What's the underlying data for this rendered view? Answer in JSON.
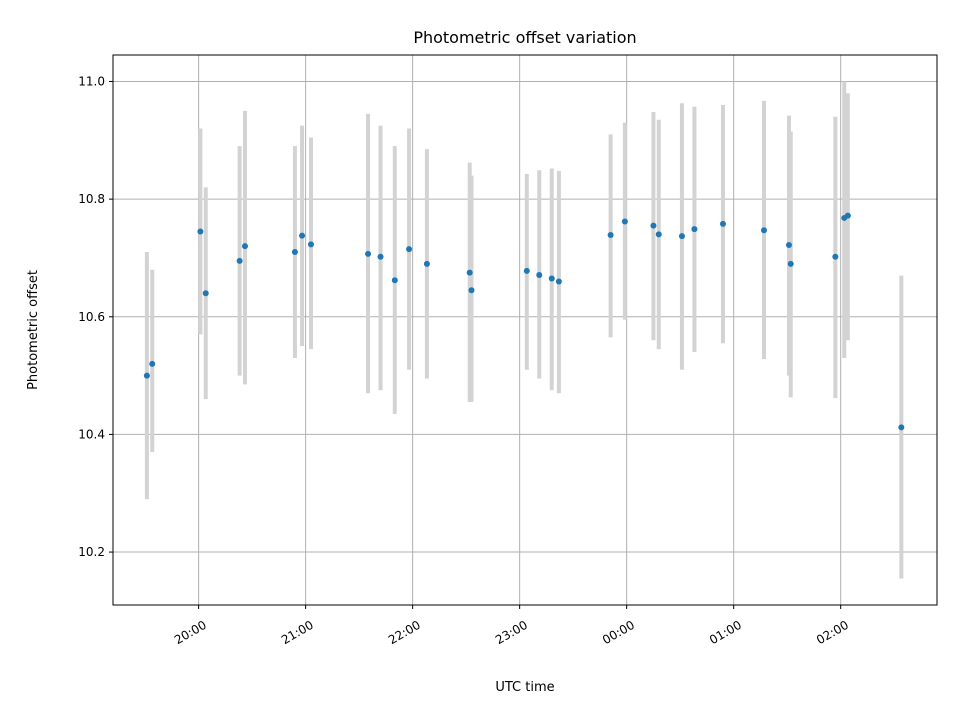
{
  "chart_data": {
    "type": "scatter",
    "title": "Photometric offset variation",
    "xlabel": "UTC time",
    "ylabel": "Photometric offset",
    "xlim_hours": [
      19.2,
      26.9
    ],
    "ylim": [
      10.11,
      11.045
    ],
    "x_ticks": [
      {
        "h": 20,
        "label": "20:00"
      },
      {
        "h": 21,
        "label": "21:00"
      },
      {
        "h": 22,
        "label": "22:00"
      },
      {
        "h": 23,
        "label": "23:00"
      },
      {
        "h": 24,
        "label": "00:00"
      },
      {
        "h": 25,
        "label": "01:00"
      },
      {
        "h": 26,
        "label": "02:00"
      }
    ],
    "y_ticks": [
      {
        "v": 10.2,
        "label": "10.2"
      },
      {
        "v": 10.4,
        "label": "10.4"
      },
      {
        "v": 10.6,
        "label": "10.6"
      },
      {
        "v": 10.8,
        "label": "10.8"
      },
      {
        "v": 11.0,
        "label": "11.0"
      }
    ],
    "grid": true,
    "colors": {
      "points": "#1f77b4",
      "errorbars": "#d3d3d3"
    },
    "points": [
      {
        "t": "19:31",
        "y": 10.5,
        "lo": 10.29,
        "hi": 10.71
      },
      {
        "t": "19:34",
        "y": 10.52,
        "lo": 10.37,
        "hi": 10.68
      },
      {
        "t": "20:01",
        "y": 10.745,
        "lo": 10.57,
        "hi": 10.92
      },
      {
        "t": "20:04",
        "y": 10.64,
        "lo": 10.46,
        "hi": 10.82
      },
      {
        "t": "20:23",
        "y": 10.695,
        "lo": 10.5,
        "hi": 10.89
      },
      {
        "t": "20:26",
        "y": 10.72,
        "lo": 10.485,
        "hi": 10.95
      },
      {
        "t": "20:54",
        "y": 10.71,
        "lo": 10.53,
        "hi": 10.89
      },
      {
        "t": "20:58",
        "y": 10.738,
        "lo": 10.55,
        "hi": 10.925
      },
      {
        "t": "21:03",
        "y": 10.723,
        "lo": 10.545,
        "hi": 10.905
      },
      {
        "t": "21:35",
        "y": 10.707,
        "lo": 10.47,
        "hi": 10.945
      },
      {
        "t": "21:42",
        "y": 10.702,
        "lo": 10.475,
        "hi": 10.925
      },
      {
        "t": "21:50",
        "y": 10.662,
        "lo": 10.435,
        "hi": 10.89
      },
      {
        "t": "21:58",
        "y": 10.715,
        "lo": 10.51,
        "hi": 10.92
      },
      {
        "t": "22:08",
        "y": 10.69,
        "lo": 10.495,
        "hi": 10.885
      },
      {
        "t": "22:32",
        "y": 10.675,
        "lo": 10.455,
        "hi": 10.862
      },
      {
        "t": "22:33",
        "y": 10.645,
        "lo": 10.455,
        "hi": 10.84
      },
      {
        "t": "23:04",
        "y": 10.678,
        "lo": 10.51,
        "hi": 10.843
      },
      {
        "t": "23:11",
        "y": 10.671,
        "lo": 10.495,
        "hi": 10.849
      },
      {
        "t": "23:18",
        "y": 10.665,
        "lo": 10.475,
        "hi": 10.852
      },
      {
        "t": "23:22",
        "y": 10.66,
        "lo": 10.47,
        "hi": 10.848
      },
      {
        "t": "23:51",
        "y": 10.739,
        "lo": 10.565,
        "hi": 10.91
      },
      {
        "t": "23:59",
        "y": 10.762,
        "lo": 10.595,
        "hi": 10.93
      },
      {
        "t": "00:15",
        "y": 10.755,
        "lo": 10.56,
        "hi": 10.948
      },
      {
        "t": "00:18",
        "y": 10.74,
        "lo": 10.545,
        "hi": 10.935
      },
      {
        "t": "00:31",
        "y": 10.737,
        "lo": 10.51,
        "hi": 10.963
      },
      {
        "t": "00:38",
        "y": 10.749,
        "lo": 10.54,
        "hi": 10.957
      },
      {
        "t": "00:54",
        "y": 10.758,
        "lo": 10.555,
        "hi": 10.96
      },
      {
        "t": "01:17",
        "y": 10.747,
        "lo": 10.528,
        "hi": 10.967
      },
      {
        "t": "01:31",
        "y": 10.722,
        "lo": 10.5,
        "hi": 10.942
      },
      {
        "t": "01:32",
        "y": 10.69,
        "lo": 10.463,
        "hi": 10.915
      },
      {
        "t": "01:57",
        "y": 10.702,
        "lo": 10.462,
        "hi": 10.94
      },
      {
        "t": "02:02",
        "y": 10.768,
        "lo": 10.53,
        "hi": 11.0
      },
      {
        "t": "02:04",
        "y": 10.772,
        "lo": 10.56,
        "hi": 10.98
      },
      {
        "t": "02:34",
        "y": 10.412,
        "lo": 10.155,
        "hi": 10.67
      }
    ]
  }
}
